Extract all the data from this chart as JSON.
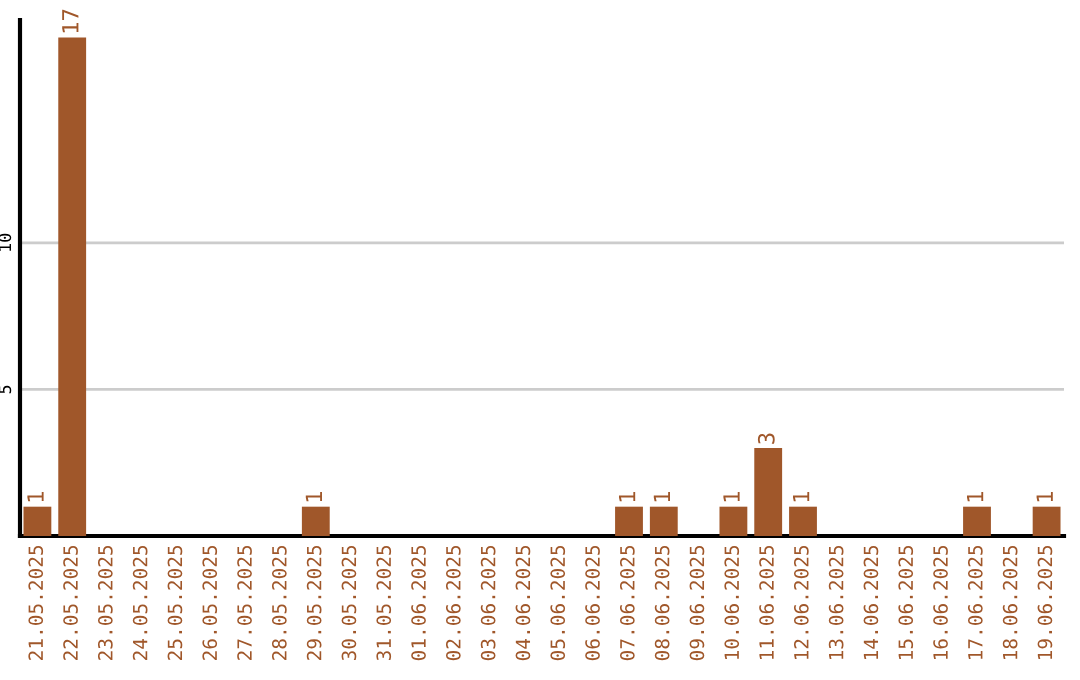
{
  "chart_data": {
    "type": "bar",
    "categories": [
      "21.05.2025",
      "22.05.2025",
      "23.05.2025",
      "24.05.2025",
      "25.05.2025",
      "26.05.2025",
      "27.05.2025",
      "28.05.2025",
      "29.05.2025",
      "30.05.2025",
      "31.05.2025",
      "01.06.2025",
      "02.06.2025",
      "03.06.2025",
      "04.06.2025",
      "05.06.2025",
      "06.06.2025",
      "07.06.2025",
      "08.06.2025",
      "09.06.2025",
      "10.06.2025",
      "11.06.2025",
      "12.06.2025",
      "13.06.2025",
      "14.06.2025",
      "15.06.2025",
      "16.06.2025",
      "17.06.2025",
      "18.06.2025",
      "19.06.2025"
    ],
    "values": [
      1,
      17,
      0,
      0,
      0,
      0,
      0,
      0,
      1,
      0,
      0,
      0,
      0,
      0,
      0,
      0,
      0,
      1,
      1,
      0,
      1,
      3,
      1,
      0,
      0,
      0,
      0,
      1,
      0,
      1
    ],
    "value_labels": [
      "1",
      "17",
      null,
      null,
      null,
      null,
      null,
      null,
      "1",
      null,
      null,
      null,
      null,
      null,
      null,
      null,
      null,
      "1",
      "1",
      null,
      "1",
      "3",
      "1",
      null,
      null,
      null,
      null,
      "1",
      null,
      "1"
    ],
    "color": "#a0572a",
    "ylim": [
      0,
      17.6
    ],
    "yticks": [
      5,
      10
    ],
    "grid": "y"
  }
}
